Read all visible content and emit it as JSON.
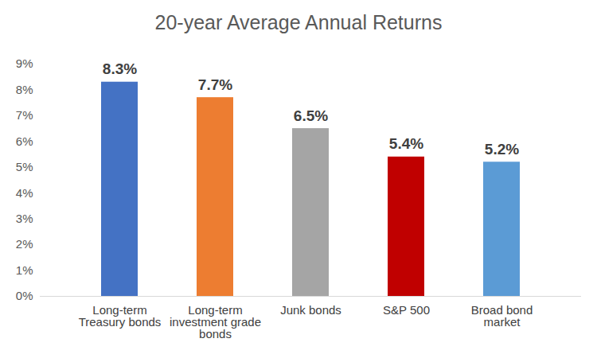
{
  "chart_data": {
    "type": "bar",
    "title": "20-year Average Annual Returns",
    "categories": [
      "Long-term Treasury bonds",
      "Long-term investment grade bonds",
      "Junk bonds",
      "S&P 500",
      "Broad bond market"
    ],
    "values": [
      8.3,
      7.7,
      6.5,
      5.4,
      5.2
    ],
    "value_labels": [
      "8.3%",
      "7.7%",
      "6.5%",
      "5.4%",
      "5.2%"
    ],
    "colors": [
      "#4472c4",
      "#ed7d31",
      "#a5a5a5",
      "#c00000",
      "#5b9bd5"
    ],
    "ylim": [
      0,
      9
    ],
    "yticks": [
      {
        "value": 0,
        "label": "0%"
      },
      {
        "value": 1,
        "label": "1%"
      },
      {
        "value": 2,
        "label": "2%"
      },
      {
        "value": 3,
        "label": "3%"
      },
      {
        "value": 4,
        "label": "4%"
      },
      {
        "value": 5,
        "label": "5%"
      },
      {
        "value": 6,
        "label": "6%"
      },
      {
        "value": 7,
        "label": "7%"
      },
      {
        "value": 8,
        "label": "8%"
      },
      {
        "value": 9,
        "label": "9%"
      }
    ],
    "grid": false,
    "data_labels": true
  }
}
